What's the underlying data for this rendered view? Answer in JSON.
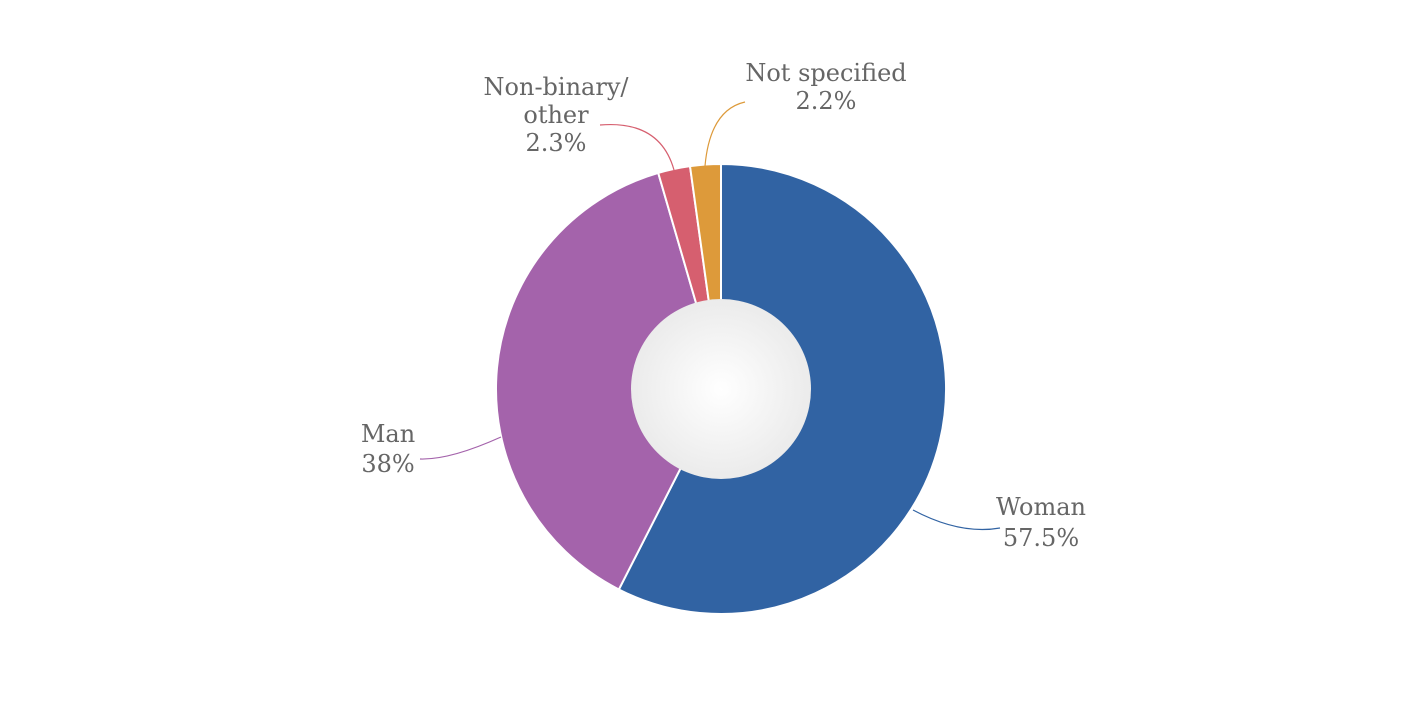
{
  "chart_data": {
    "type": "pie",
    "variant": "donut",
    "slices": [
      {
        "name": "Woman",
        "value": 57.5,
        "label": "57.5%",
        "color": "#3163a3"
      },
      {
        "name": "Man",
        "value": 38,
        "label": "38%",
        "color": "#a463ab"
      },
      {
        "name": "Non-binary/ other",
        "value": 2.3,
        "label": "2.3%",
        "color": "#d65f6f"
      },
      {
        "name": "Not specified",
        "value": 2.2,
        "label": "2.2%",
        "color": "#dd9a3a"
      }
    ],
    "start_angle_deg": 0,
    "direction": "clockwise",
    "legend": "none",
    "labels": "outside-with-leader-lines"
  }
}
